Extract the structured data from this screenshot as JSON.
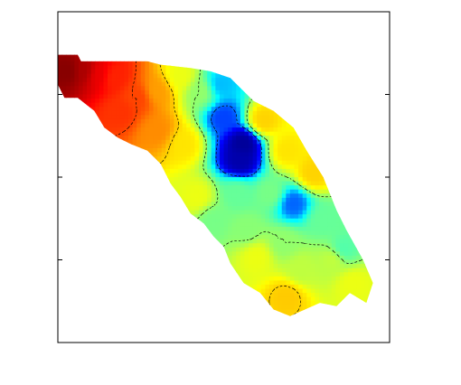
{
  "chart_data": {
    "type": "heatmap",
    "title": "",
    "xlabel": "",
    "ylabel": "",
    "tick_labels_shown": false,
    "grid": false,
    "legend": "none",
    "colormap": "jet",
    "colormap_stops": [
      "#00007f",
      "#0000ff",
      "#00ffff",
      "#7fff7f",
      "#ffff00",
      "#ff7f00",
      "#ff0000",
      "#7f0000"
    ],
    "contour_line_color": "#000000",
    "contour_line_style": "dashed",
    "region_mask": [
      [
        0.0,
        0.13
      ],
      [
        0.06,
        0.13
      ],
      [
        0.07,
        0.15
      ],
      [
        0.19,
        0.15
      ],
      [
        0.27,
        0.15
      ],
      [
        0.31,
        0.16
      ],
      [
        0.4,
        0.17
      ],
      [
        0.46,
        0.18
      ],
      [
        0.52,
        0.2
      ],
      [
        0.59,
        0.27
      ],
      [
        0.65,
        0.3
      ],
      [
        0.71,
        0.35
      ],
      [
        0.75,
        0.42
      ],
      [
        0.8,
        0.5
      ],
      [
        0.84,
        0.6
      ],
      [
        0.87,
        0.66
      ],
      [
        0.92,
        0.75
      ],
      [
        0.95,
        0.82
      ],
      [
        0.93,
        0.88
      ],
      [
        0.88,
        0.85
      ],
      [
        0.84,
        0.89
      ],
      [
        0.79,
        0.88
      ],
      [
        0.7,
        0.92
      ],
      [
        0.65,
        0.9
      ],
      [
        0.61,
        0.85
      ],
      [
        0.56,
        0.82
      ],
      [
        0.52,
        0.76
      ],
      [
        0.5,
        0.71
      ],
      [
        0.47,
        0.68
      ],
      [
        0.44,
        0.64
      ],
      [
        0.4,
        0.61
      ],
      [
        0.37,
        0.56
      ],
      [
        0.34,
        0.52
      ],
      [
        0.31,
        0.46
      ],
      [
        0.27,
        0.42
      ],
      [
        0.22,
        0.4
      ],
      [
        0.18,
        0.38
      ],
      [
        0.14,
        0.35
      ],
      [
        0.11,
        0.3
      ],
      [
        0.06,
        0.26
      ],
      [
        0.02,
        0.26
      ],
      [
        0.0,
        0.22
      ]
    ],
    "value_points": [
      {
        "x": 0.03,
        "y": 0.18,
        "v": 0.99
      },
      {
        "x": 0.08,
        "y": 0.18,
        "v": 0.95
      },
      {
        "x": 0.12,
        "y": 0.19,
        "v": 0.88
      },
      {
        "x": 0.17,
        "y": 0.2,
        "v": 0.82
      },
      {
        "x": 0.19,
        "y": 0.3,
        "v": 0.8
      },
      {
        "x": 0.24,
        "y": 0.26,
        "v": 0.78
      },
      {
        "x": 0.3,
        "y": 0.24,
        "v": 0.68
      },
      {
        "x": 0.3,
        "y": 0.36,
        "v": 0.7
      },
      {
        "x": 0.37,
        "y": 0.2,
        "v": 0.55
      },
      {
        "x": 0.38,
        "y": 0.4,
        "v": 0.6
      },
      {
        "x": 0.43,
        "y": 0.24,
        "v": 0.45
      },
      {
        "x": 0.49,
        "y": 0.22,
        "v": 0.25
      },
      {
        "x": 0.5,
        "y": 0.32,
        "v": 0.18
      },
      {
        "x": 0.55,
        "y": 0.45,
        "v": 0.05
      },
      {
        "x": 0.56,
        "y": 0.4,
        "v": 0.03
      },
      {
        "x": 0.54,
        "y": 0.55,
        "v": 0.4
      },
      {
        "x": 0.57,
        "y": 0.66,
        "v": 0.44
      },
      {
        "x": 0.6,
        "y": 0.74,
        "v": 0.55
      },
      {
        "x": 0.62,
        "y": 0.33,
        "v": 0.62
      },
      {
        "x": 0.64,
        "y": 0.55,
        "v": 0.42
      },
      {
        "x": 0.69,
        "y": 0.42,
        "v": 0.6
      },
      {
        "x": 0.71,
        "y": 0.58,
        "v": 0.2
      },
      {
        "x": 0.68,
        "y": 0.7,
        "v": 0.45
      },
      {
        "x": 0.73,
        "y": 0.78,
        "v": 0.5
      },
      {
        "x": 0.77,
        "y": 0.49,
        "v": 0.62
      },
      {
        "x": 0.8,
        "y": 0.63,
        "v": 0.4
      },
      {
        "x": 0.83,
        "y": 0.75,
        "v": 0.5
      },
      {
        "x": 0.86,
        "y": 0.72,
        "v": 0.38
      },
      {
        "x": 0.89,
        "y": 0.82,
        "v": 0.55
      },
      {
        "x": 0.69,
        "y": 0.86,
        "v": 0.63
      },
      {
        "x": 0.47,
        "y": 0.63,
        "v": 0.42
      },
      {
        "x": 0.42,
        "y": 0.56,
        "v": 0.55
      }
    ],
    "contour_levels": [
      0.2,
      0.45,
      0.62,
      0.78
    ]
  }
}
